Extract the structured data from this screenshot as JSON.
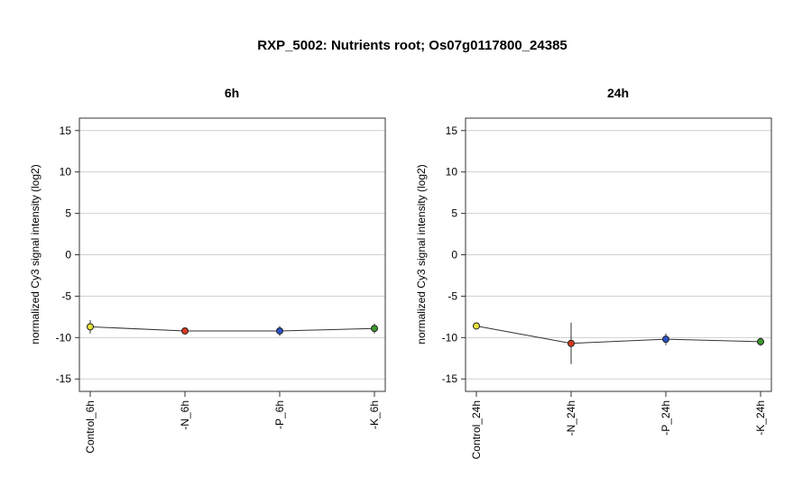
{
  "figure": {
    "title": "RXP_5002: Nutrients root; Os07g0117800_24385"
  },
  "chart_data": [
    {
      "type": "line",
      "title": "6h",
      "ylabel": "normalized Cy3 signal intensity (log2)",
      "xlabel": "",
      "ylim": [
        -16.5,
        16.5
      ],
      "yticks": [
        -15,
        -10,
        -5,
        0,
        5,
        10,
        15
      ],
      "grid": true,
      "categories": [
        "Control_6h",
        "-N_6h",
        "-P_6h",
        "-K_6h"
      ],
      "series": [
        {
          "values": [
            -8.7,
            -9.2,
            -9.2,
            -8.9
          ],
          "errors": [
            0.8,
            0.3,
            0.6,
            0.6
          ],
          "colors": [
            "#e8e23a",
            "#d63a1e",
            "#2a52c8",
            "#3a9a2a"
          ]
        }
      ]
    },
    {
      "type": "line",
      "title": "24h",
      "ylabel": "normalized Cy3 signal intensity (log2)",
      "xlabel": "",
      "ylim": [
        -16.5,
        16.5
      ],
      "yticks": [
        -15,
        -10,
        -5,
        0,
        5,
        10,
        15
      ],
      "grid": true,
      "categories": [
        "Control_24h",
        "-N_24h",
        "-P_24h",
        "-K_24h"
      ],
      "series": [
        {
          "values": [
            -8.6,
            -10.7,
            -10.2,
            -10.5
          ],
          "errors": [
            0.4,
            2.5,
            0.7,
            0.5
          ],
          "colors": [
            "#e8e23a",
            "#d63a1e",
            "#2a52c8",
            "#3a9a2a"
          ]
        }
      ]
    }
  ]
}
